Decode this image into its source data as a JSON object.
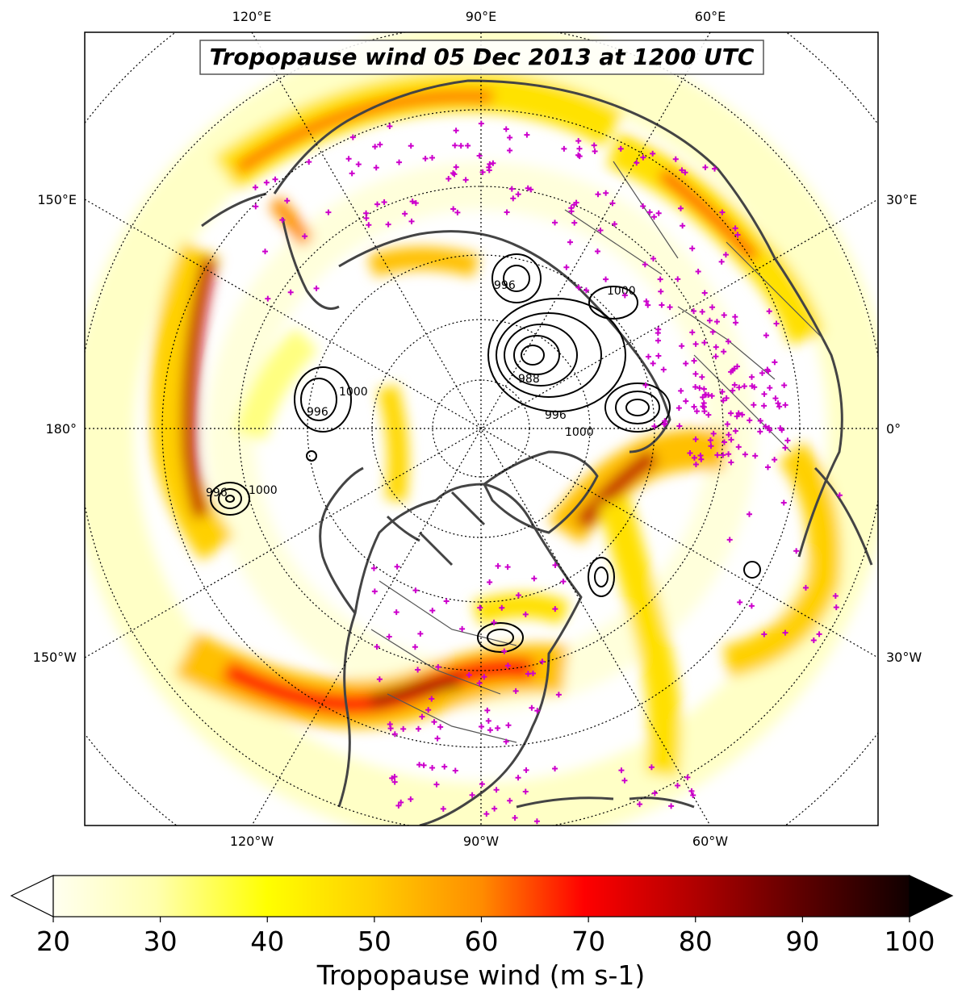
{
  "title": "Tropopause wind 05 Dec 2013 at 1200 UTC",
  "projection": "north-polar-stereographic",
  "lon_labels_top": [
    "120°E",
    "90°E",
    "60°E"
  ],
  "lon_labels_bottom": [
    "120°W",
    "90°W",
    "60°W"
  ],
  "lon_labels_left": [
    "150°E",
    "180°",
    "150°W"
  ],
  "lon_labels_right": [
    "30°E",
    "0°",
    "30°W"
  ],
  "contour_labels": [
    "996",
    "1000",
    "988",
    "996",
    "1000",
    "996",
    "988",
    "996",
    "1000"
  ],
  "colorbar": {
    "label": "Tropopause wind (m s-1)",
    "ticks": [
      "20",
      "30",
      "40",
      "50",
      "60",
      "70",
      "80",
      "90",
      "100"
    ],
    "min": 20,
    "max": 100,
    "extend": "both"
  },
  "colors": {
    "low": "#ffffe0",
    "mid": "#ffff00",
    "orange": "#ff8c00",
    "red": "#e00000",
    "dark": "#200000",
    "coast": "#404040",
    "station": "#cc00cc"
  },
  "layers": [
    "tropopause wind shading",
    "sea level pressure contours",
    "station markers",
    "coastlines",
    "country borders",
    "lat/lon graticule"
  ]
}
